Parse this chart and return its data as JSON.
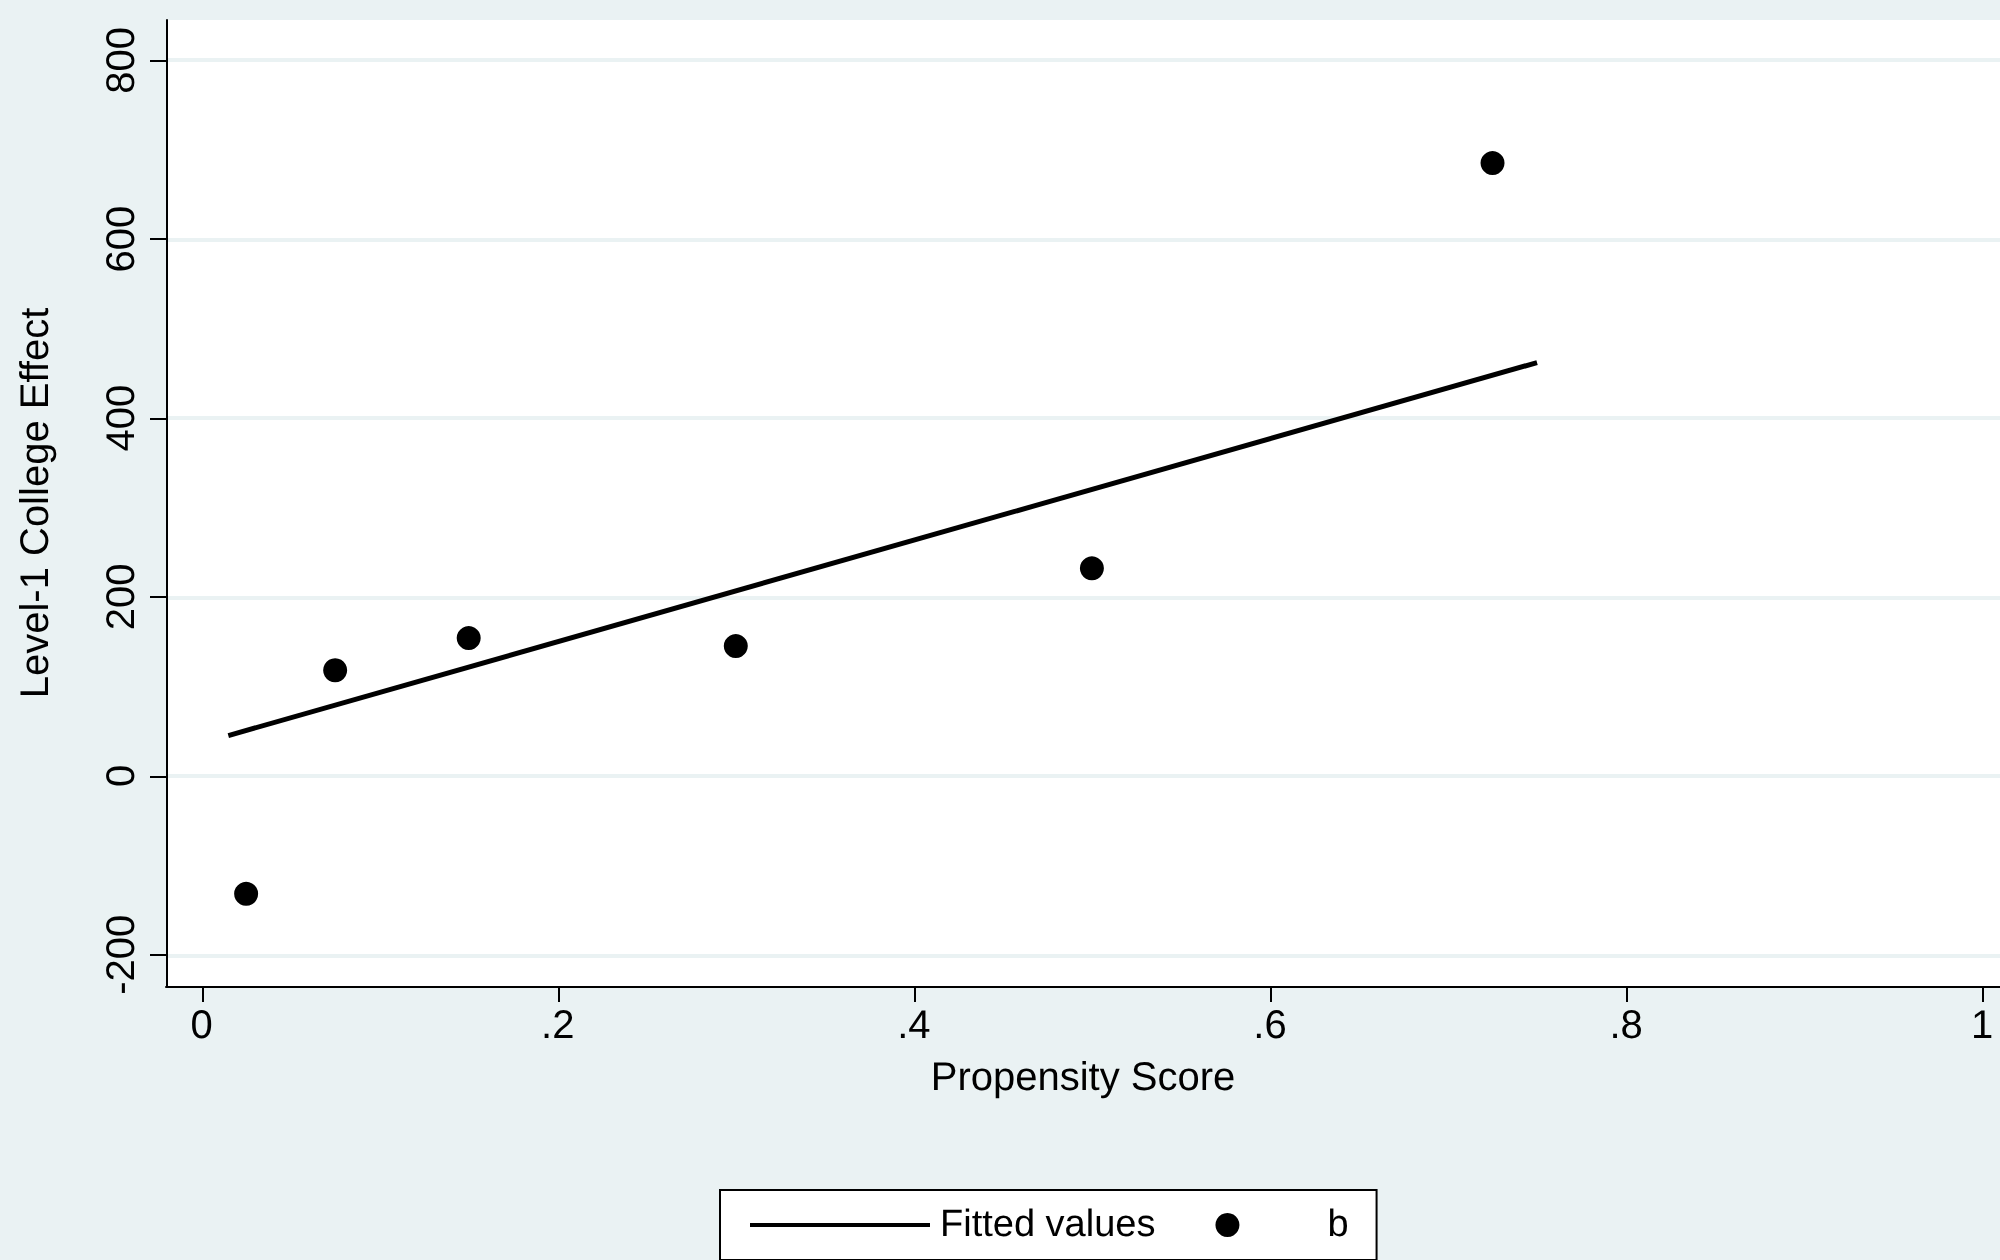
{
  "chart_data": {
    "type": "scatter",
    "xlabel": "Propensity Score",
    "ylabel": "Level-1 College Effect",
    "xlim": [
      -0.02,
      1.01
    ],
    "xticks": [
      0,
      {
        "value": 0.2,
        "label": ".2"
      },
      {
        "value": 0.4,
        "label": ".4"
      },
      {
        "value": 0.6,
        "label": ".6"
      },
      {
        "value": 0.8,
        "label": ".8"
      },
      1
    ],
    "ylim": [
      -235,
      845
    ],
    "yticks": [
      -200,
      0,
      200,
      400,
      600,
      800
    ],
    "grid": "y",
    "legend": "bottom",
    "series": [
      {
        "name": "Fitted values",
        "type": "line",
        "marker": "none",
        "color": "#000000",
        "x": [
          0.015,
          0.75
        ],
        "values": [
          45,
          462
        ]
      },
      {
        "name": "b",
        "marker": "circle",
        "color": "#000000",
        "x": [
          0.025,
          0.075,
          0.15,
          0.3,
          0.5,
          0.725
        ],
        "values": [
          -132,
          118,
          154,
          145,
          232,
          685
        ]
      }
    ]
  }
}
